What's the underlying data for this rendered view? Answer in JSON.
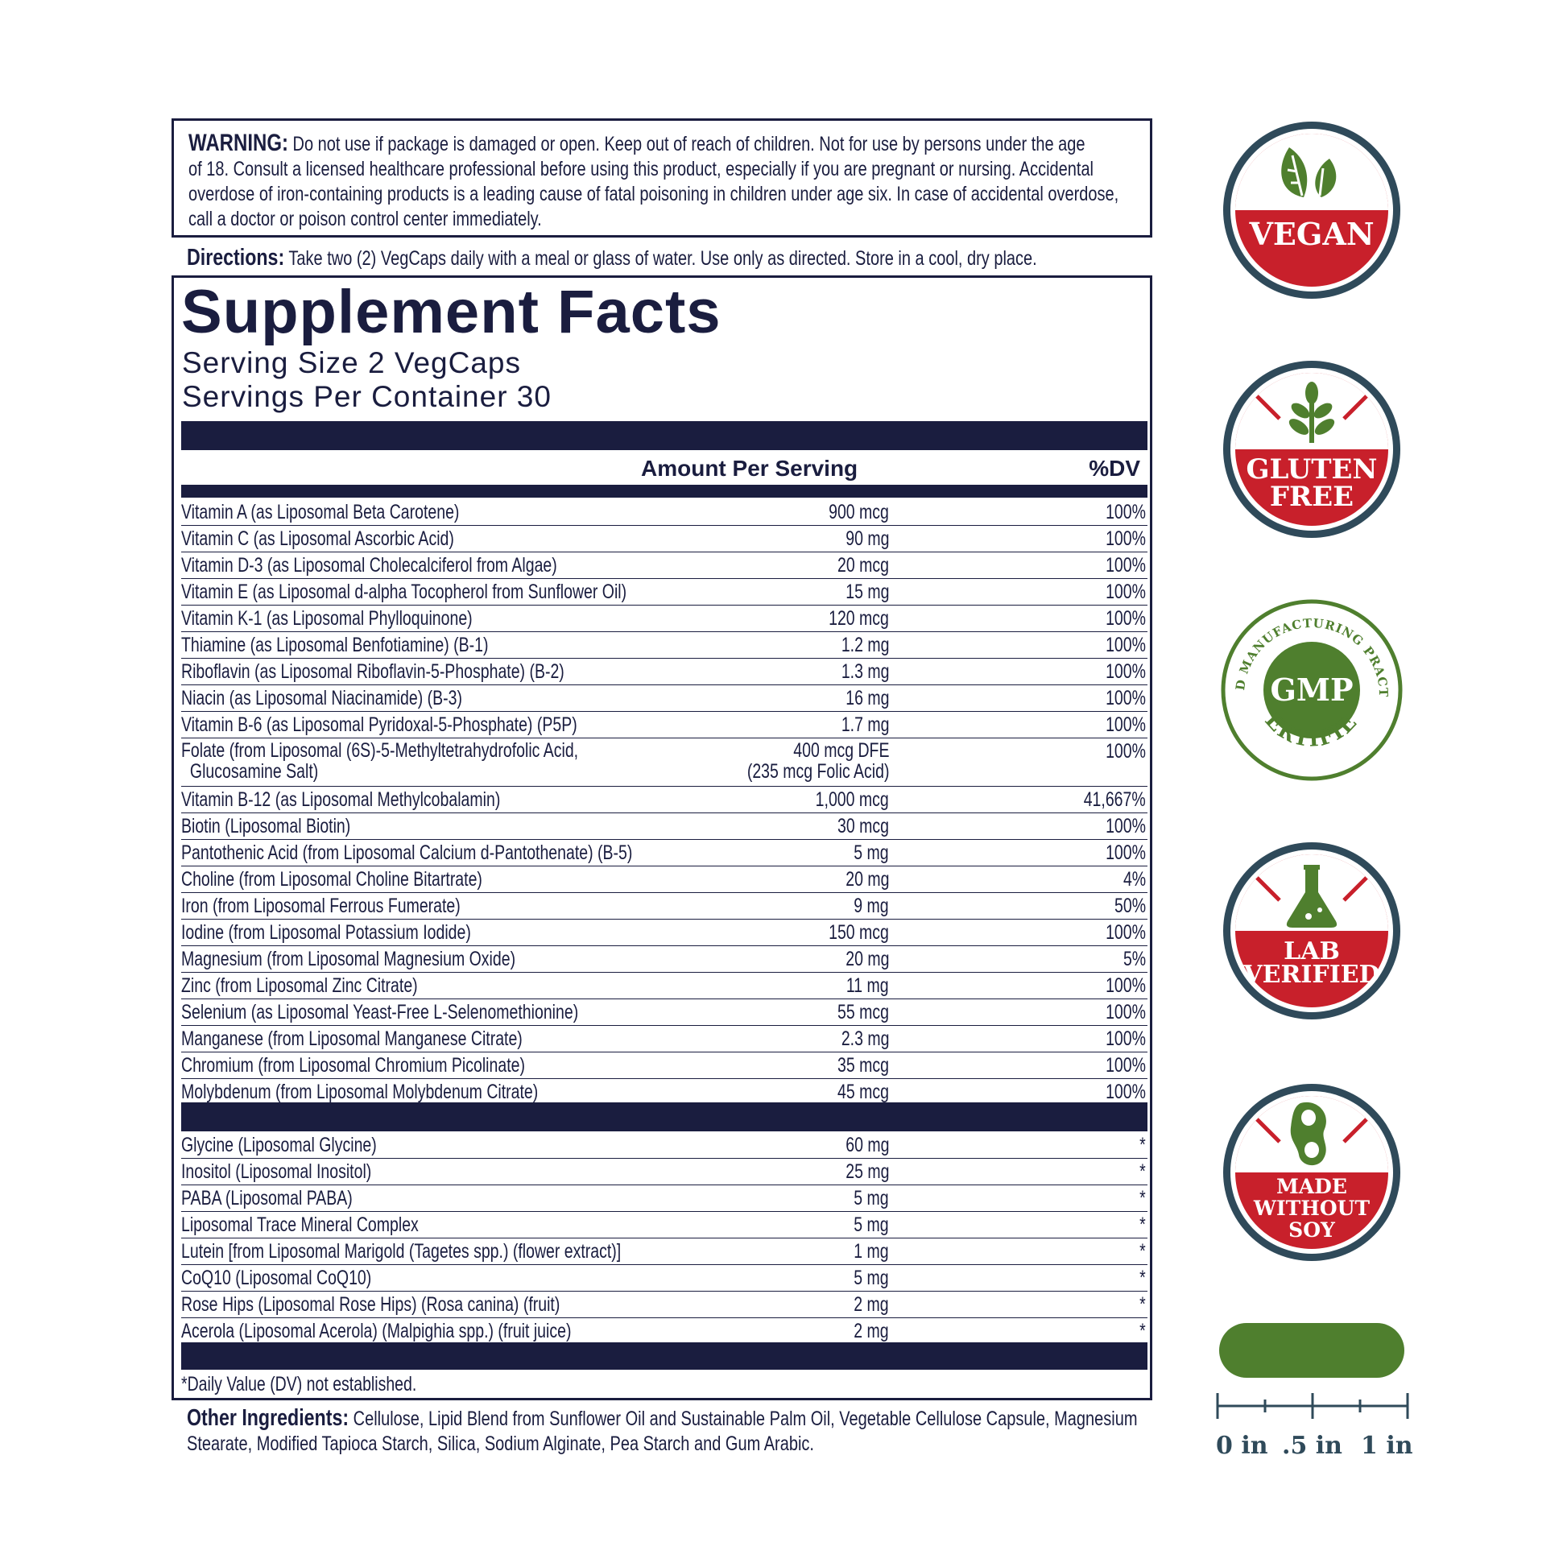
{
  "warning": {
    "label": "WARNING:",
    "lines": [
      "Do not use if package is damaged or open. Keep out of reach of children. Not for use by persons under the age",
      "of 18. Consult a licensed healthcare professional before using this product, especially if you are pregnant or nursing. Accidental",
      "overdose of iron-containing products is a leading cause of fatal poisoning in children under age six. In case of accidental overdose,",
      "call a doctor or poison control center immediately."
    ]
  },
  "directions": {
    "label": "Directions:",
    "text": "Take two (2) VegCaps daily with a meal or glass of water. Use only as directed. Store in a cool, dry place."
  },
  "facts": {
    "title": "Supplement Facts",
    "serving_size": "Serving Size 2 VegCaps",
    "servings_per_container": "Servings Per Container 30",
    "amount_header": "Amount Per Serving",
    "dv_header": "%DV",
    "footnote": "*Daily Value (DV) not established."
  },
  "nutrients": [
    {
      "name": "Vitamin A (as Liposomal Beta Carotene)",
      "amount": "900 mcg",
      "dv": "100%"
    },
    {
      "name": "Vitamin C (as Liposomal Ascorbic Acid)",
      "amount": "90 mg",
      "dv": "100%"
    },
    {
      "name": "Vitamin D-3 (as Liposomal Cholecalciferol from Algae)",
      "amount": "20 mcg",
      "dv": "100%"
    },
    {
      "name": "Vitamin E (as Liposomal d-alpha Tocopherol from Sunflower Oil)",
      "amount": "15 mg",
      "dv": "100%"
    },
    {
      "name": "Vitamin K-1 (as Liposomal Phylloquinone)",
      "amount": "120 mcg",
      "dv": "100%"
    },
    {
      "name": "Thiamine (as Liposomal Benfotiamine) (B-1)",
      "amount": "1.2 mg",
      "dv": "100%"
    },
    {
      "name": "Riboflavin (as Liposomal Riboflavin-5-Phosphate) (B-2)",
      "amount": "1.3 mg",
      "dv": "100%"
    },
    {
      "name": "Niacin (as Liposomal Niacinamide) (B-3)",
      "amount": "16 mg",
      "dv": "100%"
    },
    {
      "name": "Vitamin B-6 (as Liposomal Pyridoxal-5-Phosphate) (P5P)",
      "amount": "1.7 mg",
      "dv": "100%"
    },
    {
      "name": "Folate (from Liposomal (6S)-5-Methyltetrahydrofolic Acid,",
      "name2": "Glucosamine Salt)",
      "amount": "400 mcg DFE",
      "amount2": "(235 mcg Folic Acid)",
      "dv": "100%"
    },
    {
      "name": "Vitamin B-12 (as Liposomal Methylcobalamin)",
      "amount": "1,000 mcg",
      "dv": "41,667%"
    },
    {
      "name": "Biotin (Liposomal Biotin)",
      "amount": "30 mcg",
      "dv": "100%"
    },
    {
      "name": "Pantothenic Acid (from Liposomal Calcium d-Pantothenate) (B-5)",
      "amount": "5 mg",
      "dv": "100%"
    },
    {
      "name": "Choline (from Liposomal Choline Bitartrate)",
      "amount": "20 mg",
      "dv": "4%"
    },
    {
      "name": "Iron (from Liposomal Ferrous Fumerate)",
      "amount": "9 mg",
      "dv": "50%"
    },
    {
      "name": "Iodine (from Liposomal Potassium Iodide)",
      "amount": "150 mcg",
      "dv": "100%"
    },
    {
      "name": "Magnesium (from Liposomal Magnesium Oxide)",
      "amount": "20 mg",
      "dv": "5%"
    },
    {
      "name": "Zinc (from Liposomal Zinc Citrate)",
      "amount": "11 mg",
      "dv": "100%"
    },
    {
      "name": "Selenium (as Liposomal Yeast-Free L-Selenomethionine)",
      "amount": "55 mcg",
      "dv": "100%"
    },
    {
      "name": "Manganese (from Liposomal Manganese Citrate)",
      "amount": "2.3 mg",
      "dv": "100%"
    },
    {
      "name": "Chromium (from Liposomal Chromium Picolinate)",
      "amount": "35 mcg",
      "dv": "100%"
    },
    {
      "name": "Molybdenum (from Liposomal Molybdenum Citrate)",
      "amount": "45 mcg",
      "dv": "100%"
    }
  ],
  "other_nutrients": [
    {
      "name": "Glycine (Liposomal Glycine)",
      "amount": "60 mg",
      "dv": "*"
    },
    {
      "name": "Inositol (Liposomal Inositol)",
      "amount": "25 mg",
      "dv": "*"
    },
    {
      "name": "PABA (Liposomal PABA)",
      "amount": "5 mg",
      "dv": "*"
    },
    {
      "name": "Liposomal Trace Mineral Complex",
      "amount": "5 mg",
      "dv": "*"
    },
    {
      "name": "Lutein [from Liposomal Marigold (Tagetes spp.) (flower extract)]",
      "amount": "1 mg",
      "dv": "*"
    },
    {
      "name": "CoQ10 (Liposomal CoQ10)",
      "amount": "5 mg",
      "dv": "*"
    },
    {
      "name": "Rose Hips (Liposomal Rose Hips) (Rosa canina) (fruit)",
      "amount": "2 mg",
      "dv": "*"
    },
    {
      "name": "Acerola (Liposomal Acerola) (Malpighia spp.) (fruit juice)",
      "amount": "2 mg",
      "dv": "*"
    }
  ],
  "other_ingredients": {
    "label": "Other Ingredients:",
    "line1": "Cellulose, Lipid Blend from Sunflower Oil and Sustainable Palm Oil, Vegetable Cellulose Capsule, Magnesium",
    "line2": "Stearate, Modified Tapioca Starch, Silica, Sodium Alginate, Pea Starch and Gum Arabic."
  },
  "badges": {
    "vegan": "VEGAN",
    "gluten_free_1": "GLUTEN",
    "gluten_free_2": "FREE",
    "gmp": "GMP",
    "gmp_arc_top": "GOOD MANUFACTURING PRACTICE",
    "gmp_arc_bottom": "CERTIFIED",
    "lab_1": "LAB",
    "lab_2": "VERIFIED",
    "soy_1": "MADE",
    "soy_2": "WITHOUT",
    "soy_3": "SOY"
  },
  "ruler": {
    "labels": [
      "0 in",
      ".5 in",
      "1 in"
    ]
  },
  "colors": {
    "navy": "#1a1d3f",
    "badge_red": "#c8202b",
    "badge_ring": "#2f4a5a",
    "green": "#4f7f2e"
  }
}
